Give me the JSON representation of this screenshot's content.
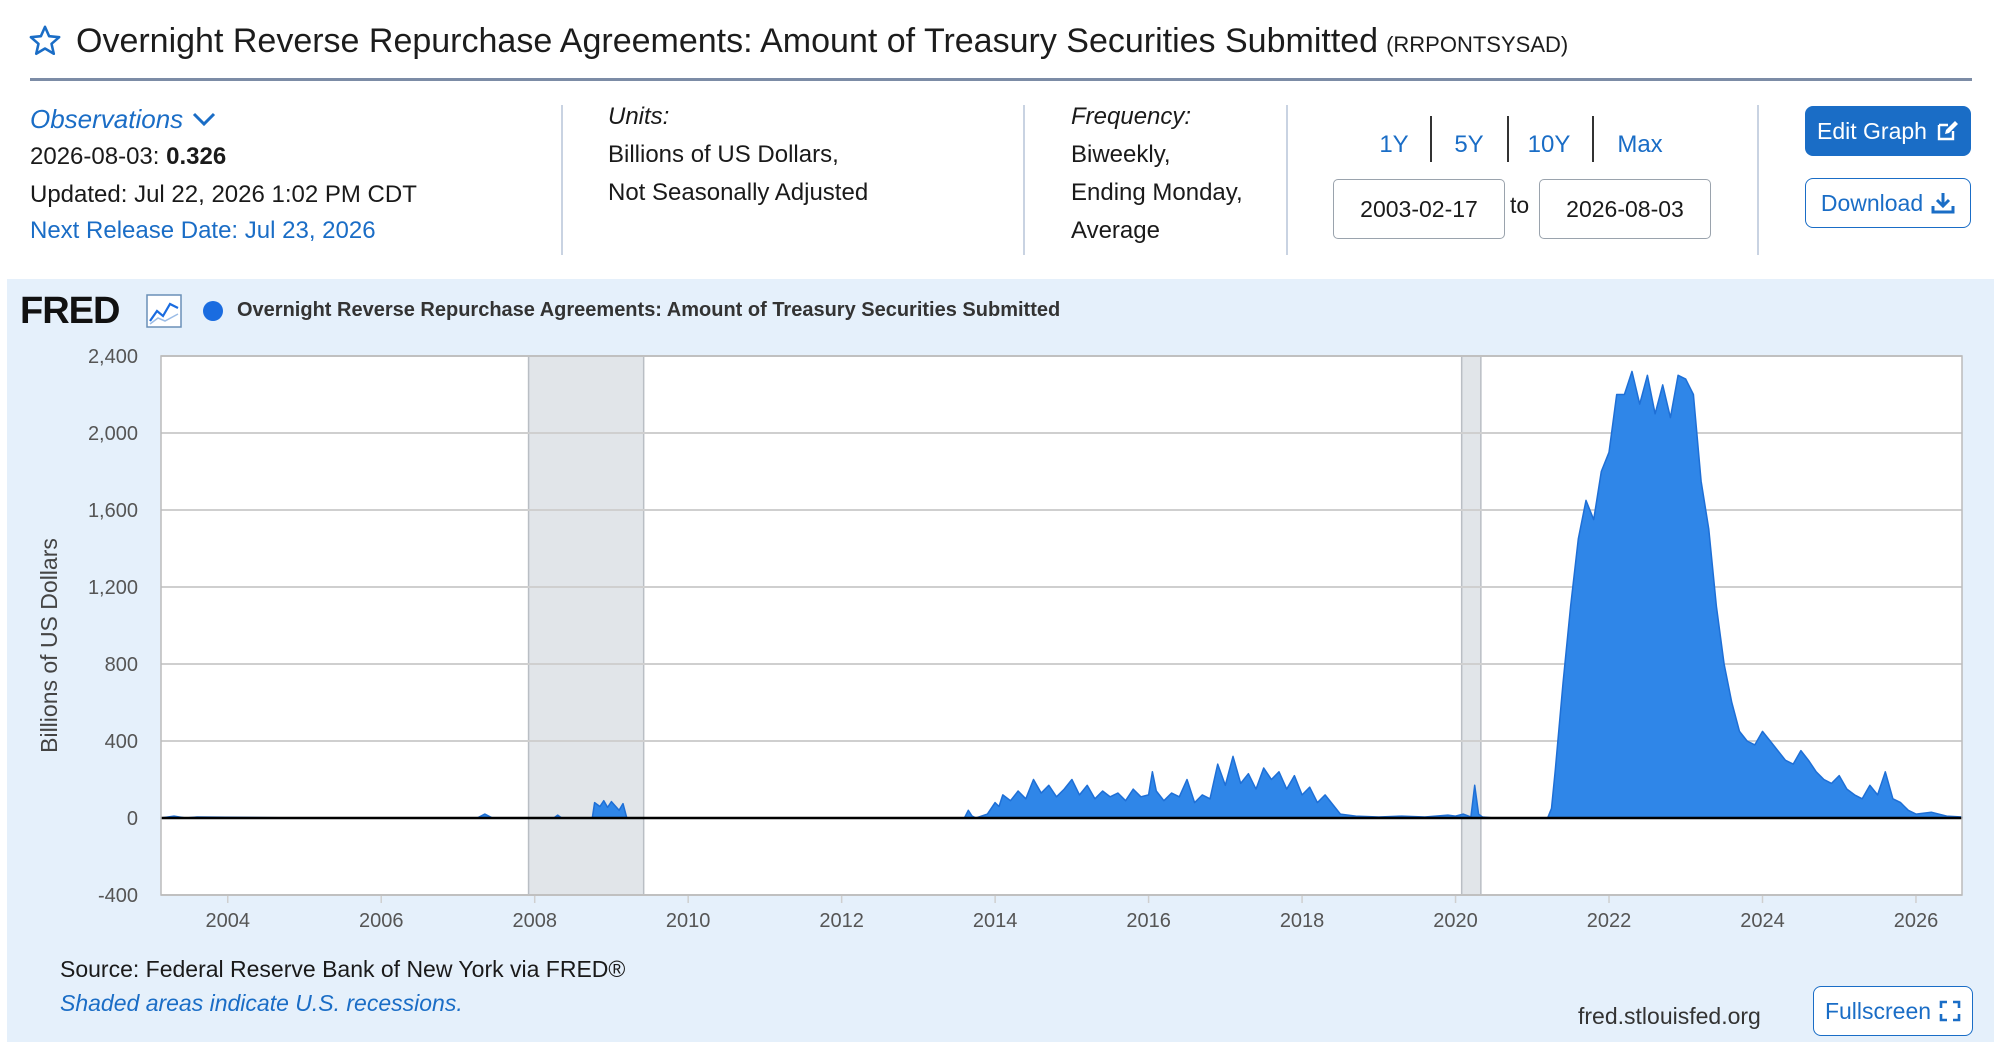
{
  "header": {
    "title": "Overnight Reverse Repurchase Agreements: Amount of Treasury Securities Submitted",
    "series_id": "(RRPONTSYSAD)"
  },
  "observations": {
    "label": "Observations",
    "date": "2026-08-03:",
    "value": "0.326",
    "updated": "Updated: Jul 22, 2026 1:02 PM CDT",
    "next_release": "Next Release Date: Jul 23, 2026"
  },
  "units": {
    "label": "Units:",
    "line1": "Billions of US Dollars,",
    "line2": "Not Seasonally Adjusted"
  },
  "frequency": {
    "label": "Frequency:",
    "line1": "Biweekly,",
    "line2": "Ending Monday,",
    "line3": "Average"
  },
  "range": {
    "buttons": [
      "1Y",
      "5Y",
      "10Y",
      "Max"
    ],
    "start": "2003-02-17",
    "to_label": "to",
    "end": "2026-08-03"
  },
  "actions": {
    "edit_label": "Edit Graph",
    "download_label": "Download",
    "fullscreen_label": "Fullscreen"
  },
  "graph": {
    "logo": "FRED",
    "legend": "Overnight Reverse Repurchase Agreements: Amount of Treasury Securities Submitted",
    "source": "Source: Federal Reserve Bank of New York via FRED®",
    "shaded_note": "Shaded areas indicate U.S. recessions.",
    "site": "fred.stlouisfed.org"
  },
  "colors": {
    "series": "#2f86e8",
    "accent": "#1a6dc6",
    "recession": "#e1e5e9",
    "panel": "#e5f0fb"
  },
  "icons": {
    "star": "star-outline-icon",
    "chevron": "chevron-down-icon",
    "edit": "edit-icon",
    "download": "download-icon",
    "fullscreen": "fullscreen-icon",
    "chart": "line-chart-icon"
  },
  "chart_data": {
    "type": "area",
    "title": "",
    "xlabel": "",
    "ylabel": "Billions of US Dollars",
    "xlim": [
      2003.13,
      2026.6
    ],
    "ylim": [
      -400,
      2400
    ],
    "yticks": [
      -400,
      0,
      400,
      800,
      1200,
      1600,
      2000,
      2400
    ],
    "ytick_labels": [
      "-400",
      "0",
      "400",
      "800",
      "1,200",
      "1,600",
      "2,000",
      "2,400"
    ],
    "xticks": [
      2004,
      2006,
      2008,
      2010,
      2012,
      2014,
      2016,
      2018,
      2020,
      2022,
      2024,
      2026
    ],
    "xtick_labels": [
      "2004",
      "2006",
      "2008",
      "2010",
      "2012",
      "2014",
      "2016",
      "2018",
      "2020",
      "2022",
      "2024",
      "2026"
    ],
    "grid": true,
    "recessions": [
      [
        2007.92,
        2009.42
      ],
      [
        2020.08,
        2020.33
      ]
    ],
    "series": [
      {
        "name": "Overnight Reverse Repurchase Agreements: Amount of Treasury Securities Submitted",
        "x": [
          2003.13,
          2003.3,
          2003.45,
          2003.6,
          2005.0,
          2007.25,
          2007.35,
          2007.45,
          2008.0,
          2008.25,
          2008.3,
          2008.35,
          2008.75,
          2008.78,
          2008.85,
          2008.9,
          2008.95,
          2009.0,
          2009.1,
          2009.15,
          2009.2,
          2009.3,
          2011.0,
          2013.0,
          2013.6,
          2013.65,
          2013.7,
          2013.75,
          2013.9,
          2014.0,
          2014.05,
          2014.1,
          2014.2,
          2014.3,
          2014.4,
          2014.5,
          2014.6,
          2014.7,
          2014.8,
          2014.9,
          2015.0,
          2015.1,
          2015.2,
          2015.3,
          2015.4,
          2015.5,
          2015.6,
          2015.7,
          2015.8,
          2015.9,
          2016.0,
          2016.05,
          2016.1,
          2016.2,
          2016.3,
          2016.4,
          2016.5,
          2016.6,
          2016.7,
          2016.8,
          2016.9,
          2017.0,
          2017.1,
          2017.2,
          2017.3,
          2017.4,
          2017.5,
          2017.6,
          2017.7,
          2017.8,
          2017.9,
          2018.0,
          2018.1,
          2018.2,
          2018.3,
          2018.5,
          2018.7,
          2019.0,
          2019.3,
          2019.6,
          2019.9,
          2020.0,
          2020.1,
          2020.2,
          2020.25,
          2020.3,
          2020.35,
          2020.5,
          2021.0,
          2021.2,
          2021.25,
          2021.3,
          2021.4,
          2021.5,
          2021.6,
          2021.7,
          2021.8,
          2021.9,
          2022.0,
          2022.1,
          2022.2,
          2022.3,
          2022.4,
          2022.5,
          2022.6,
          2022.7,
          2022.8,
          2022.9,
          2023.0,
          2023.1,
          2023.2,
          2023.3,
          2023.4,
          2023.5,
          2023.6,
          2023.7,
          2023.8,
          2023.9,
          2024.0,
          2024.1,
          2024.2,
          2024.3,
          2024.4,
          2024.5,
          2024.6,
          2024.7,
          2024.8,
          2024.9,
          2025.0,
          2025.1,
          2025.2,
          2025.3,
          2025.4,
          2025.5,
          2025.6,
          2025.7,
          2025.8,
          2025.9,
          2026.0,
          2026.2,
          2026.4,
          2026.6
        ],
        "y": [
          0,
          10,
          0,
          5,
          0,
          0,
          20,
          0,
          0,
          0,
          15,
          0,
          0,
          80,
          60,
          90,
          55,
          85,
          40,
          75,
          0,
          0,
          0,
          0,
          0,
          40,
          10,
          0,
          20,
          80,
          60,
          120,
          90,
          140,
          100,
          200,
          130,
          170,
          110,
          150,
          200,
          120,
          170,
          100,
          140,
          110,
          130,
          90,
          150,
          110,
          120,
          240,
          140,
          90,
          130,
          110,
          200,
          80,
          120,
          100,
          280,
          170,
          320,
          180,
          230,
          150,
          260,
          200,
          240,
          150,
          220,
          120,
          160,
          80,
          120,
          20,
          10,
          5,
          10,
          5,
          15,
          10,
          20,
          5,
          170,
          20,
          5,
          0,
          0,
          0,
          50,
          250,
          700,
          1100,
          1450,
          1650,
          1550,
          1800,
          1900,
          2200,
          2200,
          2320,
          2150,
          2300,
          2100,
          2250,
          2080,
          2300,
          2280,
          2200,
          1750,
          1500,
          1100,
          800,
          600,
          450,
          400,
          380,
          450,
          400,
          350,
          300,
          280,
          350,
          300,
          240,
          200,
          180,
          220,
          150,
          120,
          100,
          170,
          120,
          240,
          100,
          80,
          40,
          20,
          30,
          10,
          5
        ]
      }
    ]
  }
}
